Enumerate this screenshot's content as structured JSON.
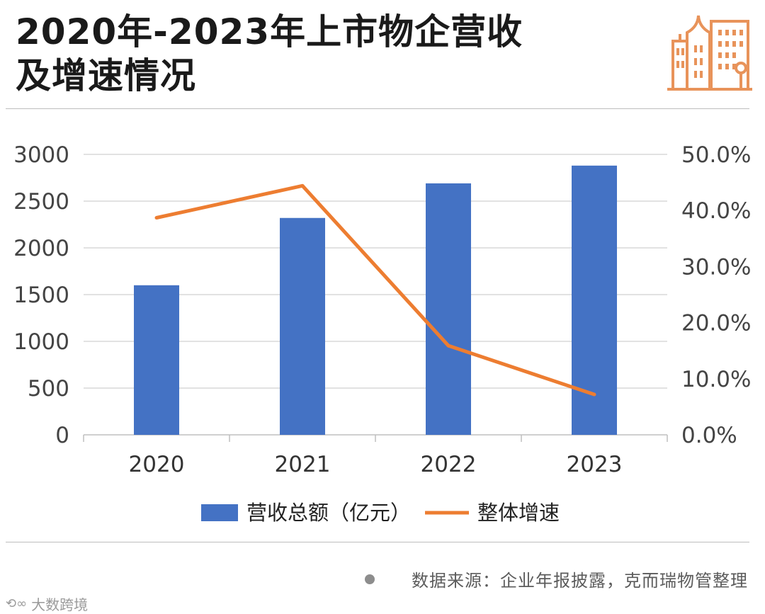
{
  "title": {
    "line1": "2020年-2023年上市物企营收",
    "line2": "及增速情况"
  },
  "header_icon": "building-icon",
  "colors": {
    "bar": "#4472c4",
    "line": "#ed7d31",
    "icon": "#e8935a",
    "grid": "#d9d9d9",
    "text": "#444444"
  },
  "chart_data": {
    "type": "bar+line",
    "categories": [
      "2020",
      "2021",
      "2022",
      "2023"
    ],
    "series": [
      {
        "name": "营收总额（亿元）",
        "type": "bar",
        "axis": "left",
        "values": [
          1600,
          2320,
          2690,
          2880
        ]
      },
      {
        "name": "整体增速",
        "type": "line",
        "axis": "right",
        "values": [
          38.7,
          44.4,
          15.9,
          7.2
        ]
      }
    ],
    "y_left": {
      "min": 0,
      "max": 3000,
      "ticks": [
        "0",
        "500",
        "1000",
        "1500",
        "2000",
        "2500",
        "3000"
      ]
    },
    "y_right": {
      "min": 0,
      "max": 50,
      "ticks": [
        "0.0%",
        "10.0%",
        "20.0%",
        "30.0%",
        "40.0%",
        "50.0%"
      ]
    },
    "legend_position": "bottom",
    "grid": true
  },
  "source": "数据来源：企业年报披露，克而瑞物管整理",
  "watermark": "大数跨境"
}
